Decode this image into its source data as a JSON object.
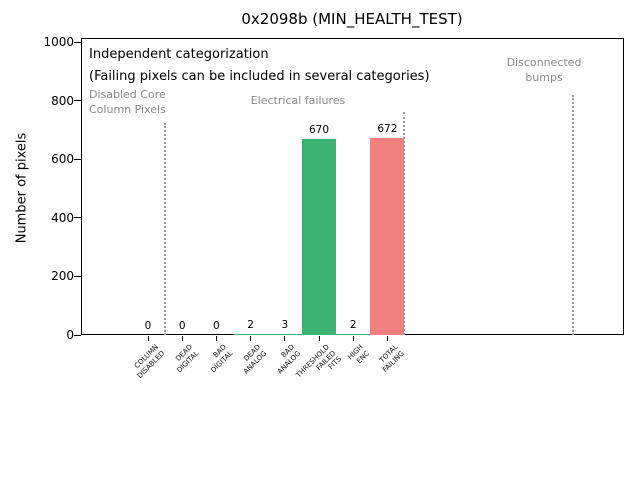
{
  "chart_data": {
    "type": "bar",
    "title": "0x2098b (MIN_HEALTH_TEST)",
    "ylabel": "Number of pixels",
    "xlabel": "",
    "ylim": [
      0,
      1000
    ],
    "yticks": [
      0,
      200,
      400,
      600,
      800,
      1000
    ],
    "grid": false,
    "legend": null,
    "categories": [
      "COLUMN\nDISABLED",
      "DEAD\nDIGITAL",
      "BAD\nDIGITAL",
      "DEAD\nANALOG",
      "BAD\nANALOG",
      "THRESHOLD\nFAILED\nFITS",
      "HIGH\nENC",
      "TOTAL\nFAILING"
    ],
    "values": [
      0,
      0,
      0,
      2,
      3,
      670,
      2,
      672
    ],
    "bar_value_labels": [
      "0",
      "0",
      "0",
      "2",
      "3",
      "670",
      "2",
      "672"
    ],
    "bar_colors": [
      "#3CB371",
      "#3CB371",
      "#3CB371",
      "#3CB371",
      "#3CB371",
      "#3CB371",
      "#3CB371",
      "#F08080"
    ],
    "colors": {
      "green_bar": "#3CB371",
      "red_bar": "#F08080",
      "section_text": "#8a8a8a",
      "separator_line": "#9a9a9a",
      "axis": "#000000"
    },
    "annotations": [
      "Independent categorization",
      "(Failing pixels can be included in several categories)"
    ],
    "section_labels": [
      {
        "text": "Disabled Core\nColumn Pixels"
      },
      {
        "text": "Electrical failures"
      },
      {
        "text": "Disconnected\nbumps"
      }
    ]
  }
}
